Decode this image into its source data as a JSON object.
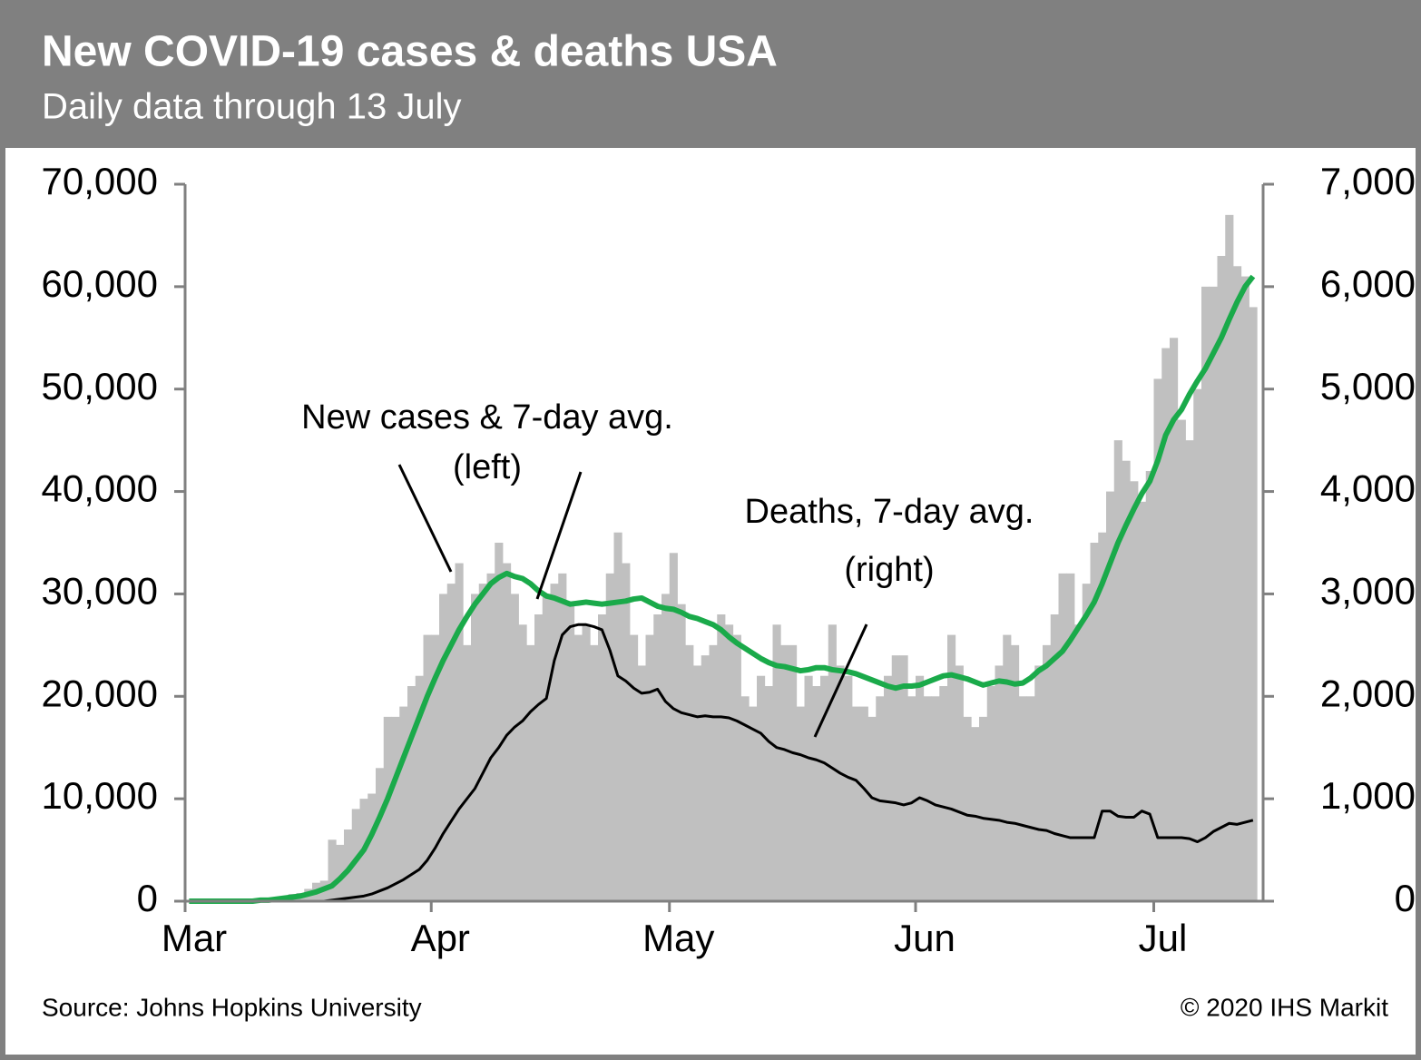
{
  "chart_data": {
    "type": "bar",
    "title": "New COVID-19 cases & deaths USA",
    "subtitle": "Daily data through 13 July",
    "source": "Source:  Johns Hopkins University",
    "copyright": "© 2020 IHS Markit",
    "annotations": [
      "(left)",
      "(right)"
    ],
    "categories": [
      "Mar",
      null,
      null,
      null,
      null,
      null,
      null,
      null,
      null,
      null,
      null,
      null,
      null,
      null,
      null,
      null,
      null,
      null,
      null,
      null,
      null,
      null,
      null,
      null,
      null,
      null,
      null,
      null,
      null,
      null,
      null,
      "Apr",
      null,
      null,
      null,
      null,
      null,
      null,
      null,
      null,
      null,
      null,
      null,
      null,
      null,
      null,
      null,
      null,
      null,
      null,
      null,
      null,
      null,
      null,
      null,
      null,
      null,
      null,
      null,
      null,
      null,
      "May",
      null,
      null,
      null,
      null,
      null,
      null,
      null,
      null,
      null,
      null,
      null,
      null,
      null,
      null,
      null,
      null,
      null,
      null,
      null,
      null,
      null,
      null,
      null,
      null,
      null,
      null,
      null,
      null,
      null,
      null,
      "Jun",
      null,
      null,
      null,
      null,
      null,
      null,
      null,
      null,
      null,
      null,
      null,
      null,
      null,
      null,
      null,
      null,
      null,
      null,
      null,
      null,
      null,
      null,
      null,
      null,
      null,
      null,
      null,
      null,
      null,
      "Jul",
      null,
      null,
      null,
      null,
      null,
      null,
      null,
      null,
      null,
      null,
      null,
      null
    ],
    "series": [
      {
        "type": "bar",
        "color": "#c0c0c0",
        "values": [
          0,
          0,
          0,
          0,
          0,
          0,
          0,
          100,
          100,
          200,
          300,
          400,
          500,
          700,
          800,
          1200,
          1800,
          2000,
          6000,
          5500,
          7000,
          9000,
          10000,
          10500,
          13000,
          18000,
          18000,
          19000,
          21000,
          22000,
          26000,
          26000,
          30000,
          31000,
          33000,
          25000,
          30000,
          31000,
          32000,
          35000,
          33000,
          30000,
          27000,
          25000,
          28000,
          30000,
          31000,
          32000,
          29000,
          26000,
          27000,
          25000,
          28000,
          32000,
          36000,
          33000,
          26000,
          23000,
          26000,
          28000,
          30000,
          34000,
          29000,
          25000,
          23000,
          24000,
          25000,
          28000,
          27000,
          26000,
          20000,
          19000,
          22000,
          21000,
          27000,
          25000,
          25000,
          19000,
          22000,
          21000,
          22000,
          27000,
          23000,
          22000,
          19000,
          19000,
          18000,
          20000,
          22000,
          24000,
          24000,
          20000,
          22000,
          20000,
          20000,
          21000,
          26000,
          23000,
          18000,
          17000,
          18000,
          21000,
          23000,
          26000,
          25000,
          20000,
          20000,
          23000,
          25000,
          28000,
          32000,
          32000,
          27000,
          31000,
          35000,
          36000,
          40000,
          45000,
          43000,
          41000,
          39000,
          42000,
          51000,
          54000,
          55000,
          47000,
          45000,
          50000,
          60000,
          60000,
          63000,
          67000,
          62000,
          61000,
          58000
        ]
      },
      {
        "type": "line",
        "name": "New cases & 7-day avg.",
        "color": "#1aaa4a",
        "values": [
          0,
          0,
          0,
          0,
          0,
          0,
          0,
          0,
          0,
          100,
          100,
          200,
          300,
          400,
          500,
          700,
          900,
          1200,
          1500,
          2200,
          3000,
          4000,
          5000,
          6500,
          8200,
          10000,
          12000,
          14000,
          16000,
          18000,
          20000,
          21800,
          23500,
          25000,
          26500,
          27800,
          29000,
          30000,
          31000,
          31600,
          32000,
          31700,
          31500,
          31000,
          30300,
          29800,
          29600,
          29300,
          29000,
          29100,
          29200,
          29100,
          29000,
          29100,
          29200,
          29300,
          29500,
          29600,
          29200,
          28800,
          28600,
          28500,
          28200,
          27800,
          27600,
          27300,
          27000,
          26500,
          25800,
          25200,
          24700,
          24200,
          23700,
          23300,
          23000,
          22900,
          22700,
          22500,
          22600,
          22800,
          22800,
          22600,
          22500,
          22400,
          22200,
          21900,
          21600,
          21300,
          21000,
          20800,
          21000,
          21000,
          21100,
          21400,
          21700,
          22000,
          22100,
          21900,
          21700,
          21400,
          21100,
          21300,
          21500,
          21400,
          21200,
          21300,
          21800,
          22500,
          23000,
          23700,
          24400,
          25500,
          26700,
          27900,
          29200,
          31000,
          33000,
          35000,
          36700,
          38300,
          39800,
          41000,
          43000,
          45500,
          47000,
          48000,
          49500,
          50800,
          52000,
          53500,
          55000,
          56800,
          58500,
          60000,
          61000
        ]
      },
      {
        "type": "line",
        "name": "Deaths, 7-day avg.",
        "axis": "y2",
        "color": "#000000",
        "values": [
          0,
          0,
          0,
          0,
          0,
          0,
          0,
          0,
          0,
          0,
          0,
          0,
          0,
          0,
          0,
          0,
          0,
          0,
          10,
          20,
          30,
          40,
          50,
          70,
          100,
          130,
          170,
          210,
          260,
          310,
          400,
          520,
          660,
          780,
          900,
          1000,
          1100,
          1250,
          1400,
          1500,
          1620,
          1700,
          1760,
          1850,
          1920,
          1980,
          2350,
          2600,
          2680,
          2700,
          2700,
          2680,
          2650,
          2450,
          2200,
          2150,
          2080,
          2030,
          2040,
          2070,
          1950,
          1880,
          1840,
          1820,
          1800,
          1810,
          1800,
          1800,
          1790,
          1760,
          1720,
          1680,
          1640,
          1560,
          1500,
          1480,
          1450,
          1430,
          1400,
          1380,
          1350,
          1300,
          1250,
          1210,
          1180,
          1100,
          1010,
          980,
          970,
          960,
          940,
          960,
          1010,
          980,
          940,
          920,
          900,
          870,
          840,
          830,
          810,
          800,
          790,
          770,
          760,
          740,
          720,
          700,
          690,
          660,
          640,
          620,
          620,
          620,
          620,
          880,
          880,
          830,
          820,
          820,
          880,
          850,
          620,
          620,
          620,
          620,
          610,
          580,
          620,
          680,
          720,
          760,
          750,
          770,
          790
        ]
      }
    ],
    "ylim": [
      0,
      70000
    ],
    "yticks": [
      0,
      {
        "value": 10000,
        "label": "10,000"
      },
      {
        "value": 20000,
        "label": "20,000"
      },
      {
        "value": 30000,
        "label": "30,000"
      },
      {
        "value": 40000,
        "label": "40,000"
      },
      {
        "value": 50000,
        "label": "50,000"
      },
      {
        "value": 60000,
        "label": "60,000"
      },
      {
        "value": 70000,
        "label": "70,000"
      }
    ],
    "y2lim": [
      0,
      7000
    ],
    "y2ticks": [
      0,
      {
        "value": 1000,
        "label": "1,000"
      },
      {
        "value": 2000,
        "label": "2,000"
      },
      {
        "value": 3000,
        "label": "3,000"
      },
      {
        "value": 4000,
        "label": "4,000"
      },
      {
        "value": 5000,
        "label": "5,000"
      },
      {
        "value": 6000,
        "label": "6,000"
      },
      {
        "value": 7000,
        "label": "7,000"
      }
    ],
    "grid": false
  }
}
